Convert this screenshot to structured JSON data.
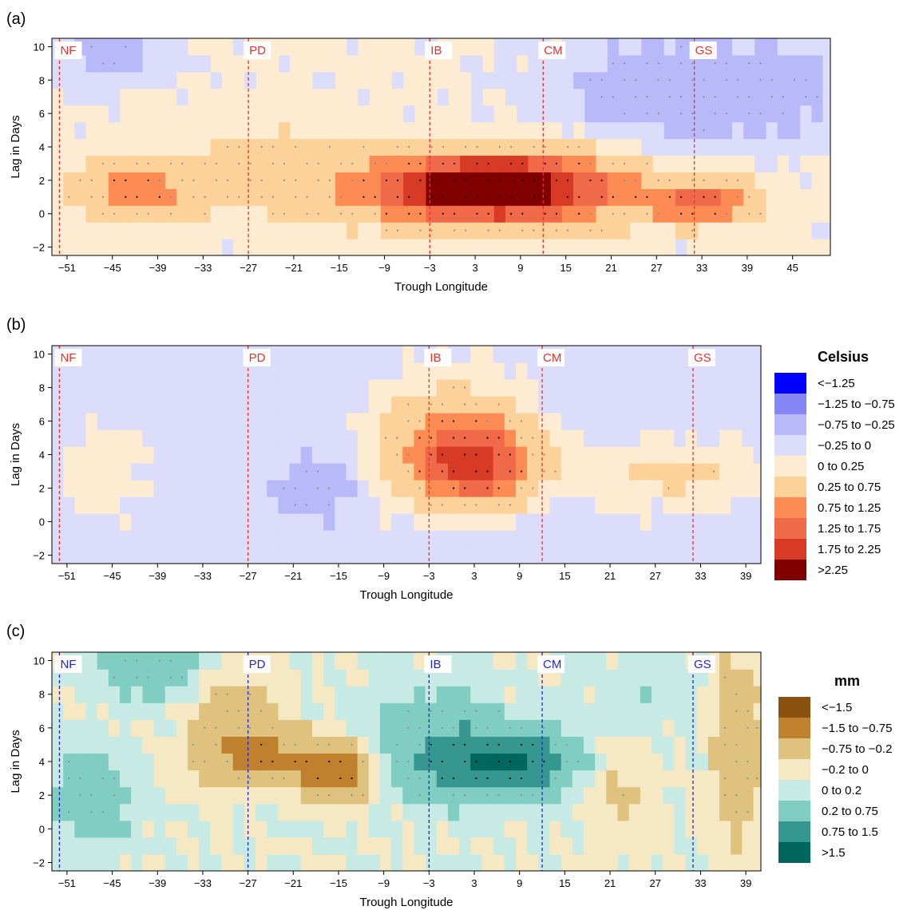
{
  "chart_data": [
    {
      "panel": "(a)",
      "type": "heatmap",
      "xlabel": "Trough Longitude",
      "ylabel": "Lag in Days",
      "xlim": [
        -53,
        50
      ],
      "ylim": [
        -2.5,
        10.5
      ],
      "xticks": [
        -51,
        -45,
        -39,
        -33,
        -27,
        -21,
        -15,
        -9,
        -3,
        3,
        9,
        15,
        21,
        27,
        33,
        39,
        45
      ],
      "yticks": [
        -2,
        0,
        2,
        4,
        6,
        8,
        10
      ],
      "lines": [
        {
          "label": "NF",
          "x": -52
        },
        {
          "label": "PD",
          "x": -27
        },
        {
          "label": "IB",
          "x": -3
        },
        {
          "label": "CM",
          "x": 12
        },
        {
          "label": "GS",
          "x": 32
        }
      ],
      "line_color": "#e8312b",
      "label_color": "#e8312b",
      "colorscale": "temp",
      "blobs": [
        {
          "x": 5,
          "y": 1.5,
          "a": 2.9,
          "sx": 16,
          "sy": 2.0
        },
        {
          "x": 6,
          "y": 1.8,
          "a": 0.9,
          "sx": 6,
          "sy": 1.0
        },
        {
          "x": -42,
          "y": 1.5,
          "a": 1.0,
          "sx": 8,
          "sy": 1.6
        },
        {
          "x": -25,
          "y": 2.5,
          "a": 0.55,
          "sx": 9,
          "sy": 2.2
        },
        {
          "x": 33,
          "y": 0.8,
          "a": 1.4,
          "sx": 7,
          "sy": 1.2
        },
        {
          "x": 33,
          "y": 7.5,
          "a": -0.75,
          "sx": 18,
          "sy": 3.0
        },
        {
          "x": -45,
          "y": 9.5,
          "a": -0.4,
          "sx": 8,
          "sy": 1.8
        }
      ],
      "base": 0.05
    },
    {
      "panel": "(b)",
      "type": "heatmap",
      "xlabel": "Trough Longitude",
      "ylabel": "Lag in Days",
      "xlim": [
        -53,
        41
      ],
      "ylim": [
        -2.5,
        10.5
      ],
      "xticks": [
        -51,
        -45,
        -39,
        -33,
        -27,
        -21,
        -15,
        -9,
        -3,
        3,
        9,
        15,
        21,
        27,
        33,
        39
      ],
      "yticks": [
        -2,
        0,
        2,
        4,
        6,
        8,
        10
      ],
      "lines": [
        {
          "label": "NF",
          "x": -52
        },
        {
          "label": "PD",
          "x": -27
        },
        {
          "label": "IB",
          "x": -3
        },
        {
          "label": "CM",
          "x": 12
        },
        {
          "label": "GS",
          "x": 32
        }
      ],
      "line_color": "#e8312b",
      "label_color": "#e8312b",
      "colorscale": "temp",
      "blobs": [
        {
          "x": 3,
          "y": 3.5,
          "a": 1.9,
          "sx": 8,
          "sy": 2.4
        },
        {
          "x": -1,
          "y": 5.5,
          "a": 0.6,
          "sx": 10,
          "sy": 3.5
        },
        {
          "x": 30,
          "y": 2.8,
          "a": 0.45,
          "sx": 12,
          "sy": 2.0
        },
        {
          "x": -46,
          "y": 3.0,
          "a": 0.25,
          "sx": 6,
          "sy": 3.0
        },
        {
          "x": -18,
          "y": 2.0,
          "a": -0.4,
          "sx": 5,
          "sy": 2.0
        }
      ],
      "base": -0.12
    },
    {
      "panel": "(c)",
      "type": "heatmap",
      "xlabel": "Trough Longitude",
      "ylabel": "Lag in Days",
      "xlim": [
        -53,
        41
      ],
      "ylim": [
        -2.5,
        10.5
      ],
      "xticks": [
        -51,
        -45,
        -39,
        -33,
        -27,
        -21,
        -15,
        -9,
        -3,
        3,
        9,
        15,
        21,
        27,
        33,
        39
      ],
      "yticks": [
        -2,
        0,
        2,
        4,
        6,
        8,
        10
      ],
      "lines": [
        {
          "label": "NF",
          "x": -52
        },
        {
          "label": "PD",
          "x": -27
        },
        {
          "label": "IB",
          "x": -3
        },
        {
          "label": "CM",
          "x": 12
        },
        {
          "label": "GS",
          "x": 32
        }
      ],
      "line_color": "#2323d6",
      "label_color": "#2323d6",
      "colorscale": "precip",
      "blobs": [
        {
          "x": 7,
          "y": 4.0,
          "a": 1.5,
          "sx": 9,
          "sy": 1.8
        },
        {
          "x": -2,
          "y": 5.0,
          "a": 0.6,
          "sx": 8,
          "sy": 3.0
        },
        {
          "x": -22,
          "y": 4.2,
          "a": -0.9,
          "sx": 10,
          "sy": 1.5
        },
        {
          "x": -29,
          "y": 6.5,
          "a": -0.6,
          "sx": 5,
          "sy": 2.5
        },
        {
          "x": -15,
          "y": 3.0,
          "a": -0.9,
          "sx": 4,
          "sy": 1.5
        },
        {
          "x": -48,
          "y": 2.0,
          "a": 0.6,
          "sx": 5,
          "sy": 2.5
        },
        {
          "x": -40,
          "y": 9.5,
          "a": 0.7,
          "sx": 6,
          "sy": 1.5
        },
        {
          "x": 22,
          "y": 2.5,
          "a": -0.3,
          "sx": 5,
          "sy": 3.0
        },
        {
          "x": 38,
          "y": 5.0,
          "a": -0.7,
          "sx": 3,
          "sy": 5.0
        },
        {
          "x": 25,
          "y": 8.0,
          "a": 0.15,
          "sx": 8,
          "sy": 3.0
        }
      ],
      "base": 0.0
    }
  ],
  "legends": {
    "temp": {
      "title": "Celsius",
      "entries": [
        "<−1.25",
        "−1.25 to −0.75",
        "−0.75 to −0.25",
        "−0.25 to 0",
        "0 to 0.25",
        "0.25 to 0.75",
        "0.75 to 1.25",
        "1.25 to 1.75",
        "1.75 to 2.25",
        ">2.25"
      ],
      "colors": [
        "#0000ff",
        "#8585f5",
        "#b9b9fa",
        "#dcdcfb",
        "#fdebd2",
        "#fdd29a",
        "#fc8c54",
        "#f06a4a",
        "#d73a25",
        "#800000"
      ],
      "bounds": [
        -1.25,
        -0.75,
        -0.25,
        0,
        0.25,
        0.75,
        1.25,
        1.75,
        2.25
      ]
    },
    "precip": {
      "title": "mm",
      "entries": [
        "<−1.5",
        "−1.5 to −0.75",
        "−0.75 to −0.2",
        "−0.2 to 0",
        "0 to 0.2",
        "0.2 to 0.75",
        "0.75 to 1.5",
        ">1.5"
      ],
      "colors": [
        "#8a510e",
        "#bf812d",
        "#dfc27d",
        "#f6e8c3",
        "#c7eae5",
        "#80cdc1",
        "#35978f",
        "#01665e"
      ],
      "bounds": [
        -1.5,
        -0.75,
        -0.2,
        0,
        0.2,
        0.75,
        1.5
      ]
    }
  }
}
